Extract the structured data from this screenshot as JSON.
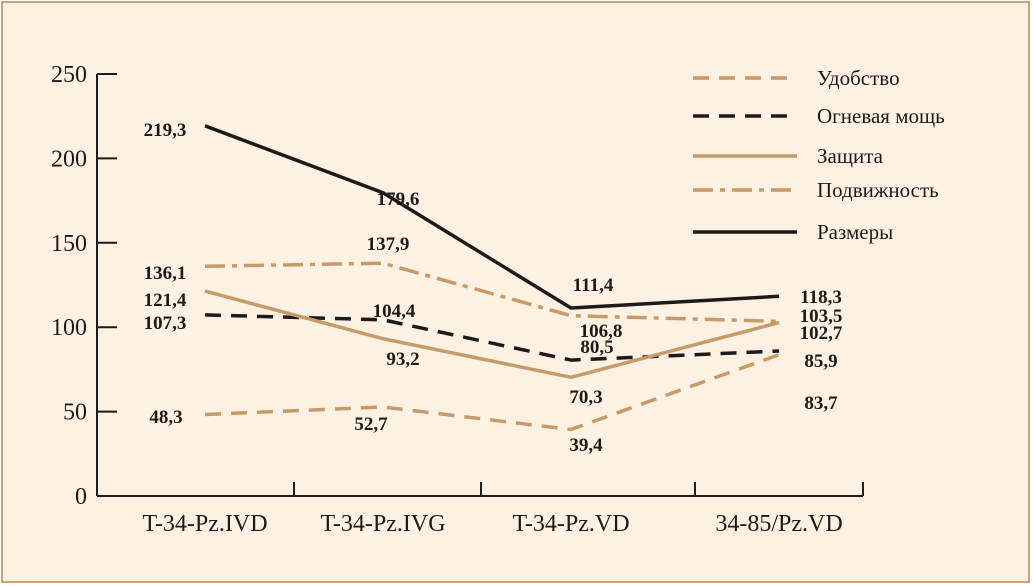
{
  "colors": {
    "background": "#fdf1e3",
    "border": "#c9a37a",
    "tan": "#c79a6b",
    "dark": "#1f1a17"
  },
  "chart_data": {
    "type": "line",
    "title": "",
    "xlabel": "",
    "ylabel": "",
    "ylim": [
      0,
      250
    ],
    "yticks": [
      "0",
      "50",
      "100",
      "150",
      "200",
      "250"
    ],
    "categories": [
      "T-34-Pz.IVD",
      "T-34-Pz.IVG",
      "T-34-Pz.VD",
      "34-85/Pz.VD"
    ],
    "grid": false,
    "legend_position": "top-right",
    "series": [
      {
        "name": "Удобство",
        "style": "dashed",
        "color": "#c79a6b",
        "values": [
          48.3,
          52.7,
          39.4,
          83.7
        ],
        "labels": [
          "48,3",
          "52,7",
          "39,4",
          "83,7"
        ]
      },
      {
        "name": "Огневая мощь",
        "style": "dashed",
        "color": "#1f1a17",
        "values": [
          107.3,
          104.4,
          80.5,
          85.9
        ],
        "labels": [
          "107,3",
          "104,4",
          "80,5",
          "85,9"
        ]
      },
      {
        "name": "Защита",
        "style": "solid",
        "color": "#c79a6b",
        "values": [
          121.4,
          93.2,
          70.3,
          102.7
        ],
        "labels": [
          "121,4",
          "93,2",
          "70,3",
          "102,7"
        ]
      },
      {
        "name": "Подвижность",
        "style": "dashdot",
        "color": "#c79a6b",
        "values": [
          136.1,
          137.9,
          106.8,
          103.5
        ],
        "labels": [
          "136,1",
          "137,9",
          "106,8",
          "103,5"
        ]
      },
      {
        "name": "Размеры",
        "style": "solid",
        "color": "#1f1a17",
        "values": [
          219.3,
          179.6,
          111.4,
          118.3
        ],
        "labels": [
          "219,3",
          "179,6",
          "111,4",
          "118,3"
        ]
      }
    ]
  }
}
